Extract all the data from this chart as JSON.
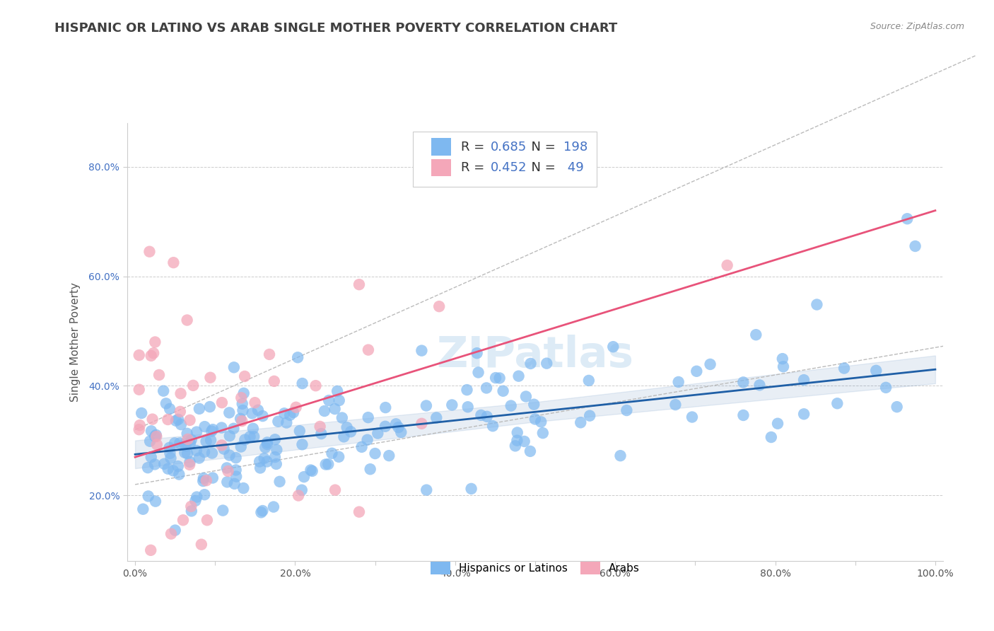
{
  "title": "HISPANIC OR LATINO VS ARAB SINGLE MOTHER POVERTY CORRELATION CHART",
  "source": "Source: ZipAtlas.com",
  "ylabel": "Single Mother Poverty",
  "xlim": [
    -0.01,
    1.01
  ],
  "ylim": [
    0.08,
    0.88
  ],
  "xticks": [
    0.0,
    0.1,
    0.2,
    0.3,
    0.4,
    0.5,
    0.6,
    0.7,
    0.8,
    0.9,
    1.0
  ],
  "xtick_labels": [
    "0.0%",
    "",
    "20.0%",
    "",
    "40.0%",
    "",
    "60.0%",
    "",
    "80.0%",
    "",
    "100.0%"
  ],
  "yticks": [
    0.2,
    0.4,
    0.6,
    0.8
  ],
  "ytick_labels": [
    "20.0%",
    "40.0%",
    "60.0%",
    "80.0%"
  ],
  "legend_labels": [
    "Hispanics or Latinos",
    "Arabs"
  ],
  "blue_R": 0.685,
  "blue_N": 198,
  "pink_R": 0.452,
  "pink_N": 49,
  "blue_color": "#7EB8F0",
  "pink_color": "#F4A7B9",
  "blue_line_color": "#1F5FA6",
  "pink_line_color": "#E8537A",
  "background_color": "#FFFFFF",
  "grid_color": "#CCCCCC",
  "title_color": "#404040",
  "source_color": "#888888",
  "ytick_color": "#4472C4",
  "xtick_color": "#555555",
  "title_fontsize": 13,
  "axis_label_fontsize": 11,
  "tick_fontsize": 10,
  "seed": 42,
  "blue_slope": 0.155,
  "blue_intercept": 0.275,
  "pink_slope": 0.45,
  "pink_intercept": 0.27
}
